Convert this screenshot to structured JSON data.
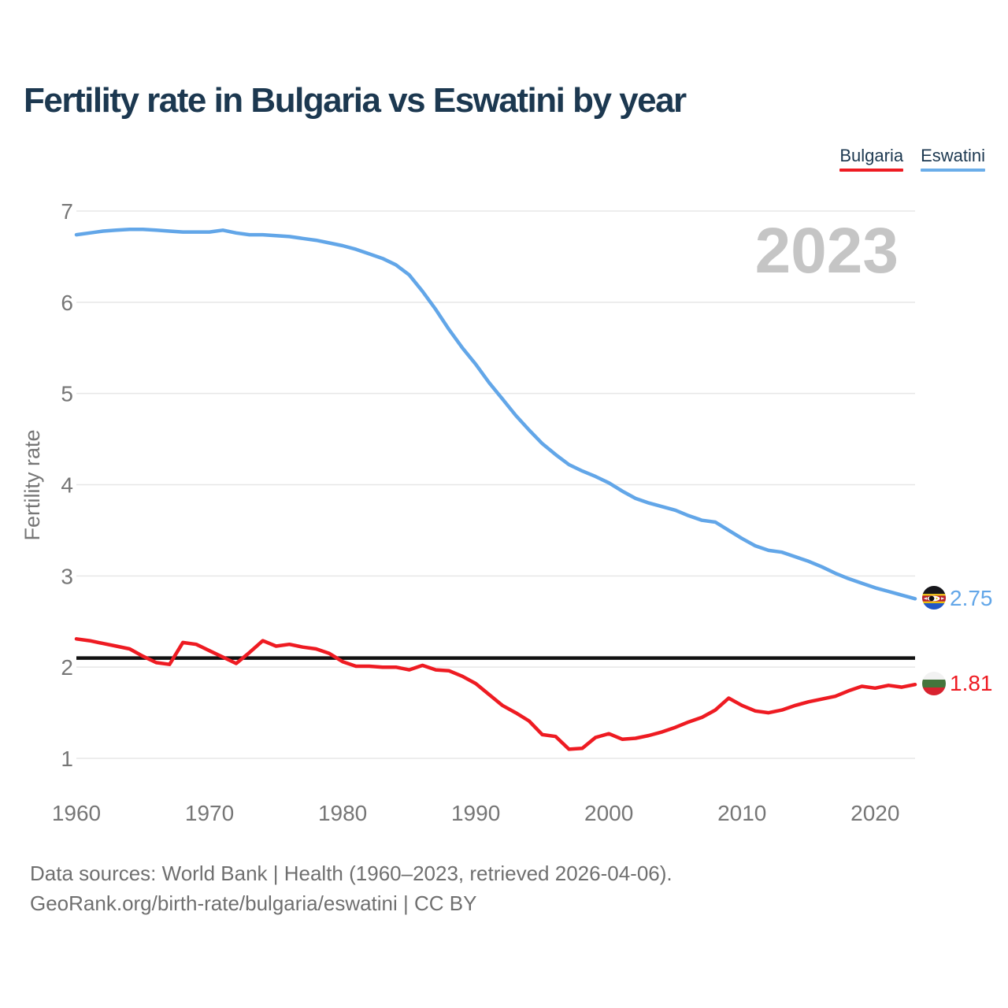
{
  "title": "Fertility rate in Bulgaria vs Eswatini by year",
  "legend": {
    "items": [
      {
        "id": "bulgaria",
        "label": "Bulgaria",
        "color": "#ee1b22"
      },
      {
        "id": "eswatini",
        "label": "Eswatini",
        "color": "#6aade9"
      }
    ]
  },
  "chart_data": {
    "type": "line",
    "title": "Fertility rate in Bulgaria vs Eswatini by year",
    "ylabel": "Fertility rate",
    "xlabel": "",
    "watermark": "2023",
    "ylim": [
      1,
      7
    ],
    "yticks": [
      1,
      2,
      3,
      4,
      5,
      6,
      7
    ],
    "xticks": [
      1960,
      1970,
      1980,
      1990,
      2000,
      2010,
      2020
    ],
    "x_range": [
      1960,
      2023
    ],
    "grid": true,
    "legend_position": "top-right",
    "reference_line": {
      "value": 2.1,
      "color": "#111111"
    },
    "end_labels": {
      "eswatini": "2.75",
      "bulgaria": "1.81"
    },
    "colors": {
      "grid": "#e7e7e7",
      "axis_text": "#767676"
    },
    "x": [
      1960,
      1961,
      1962,
      1963,
      1964,
      1965,
      1966,
      1967,
      1968,
      1969,
      1970,
      1971,
      1972,
      1973,
      1974,
      1975,
      1976,
      1977,
      1978,
      1979,
      1980,
      1981,
      1982,
      1983,
      1984,
      1985,
      1986,
      1987,
      1988,
      1989,
      1990,
      1991,
      1992,
      1993,
      1994,
      1995,
      1996,
      1997,
      1998,
      1999,
      2000,
      2001,
      2002,
      2003,
      2004,
      2005,
      2006,
      2007,
      2008,
      2009,
      2010,
      2011,
      2012,
      2013,
      2014,
      2015,
      2016,
      2017,
      2018,
      2019,
      2020,
      2021,
      2022,
      2023
    ],
    "series": [
      {
        "name": "eswatini",
        "label": "Eswatini",
        "color": "#62a6e8",
        "values": [
          6.74,
          6.76,
          6.78,
          6.79,
          6.8,
          6.8,
          6.79,
          6.78,
          6.77,
          6.77,
          6.77,
          6.79,
          6.76,
          6.74,
          6.74,
          6.73,
          6.72,
          6.7,
          6.68,
          6.65,
          6.62,
          6.58,
          6.53,
          6.48,
          6.41,
          6.3,
          6.12,
          5.92,
          5.7,
          5.5,
          5.32,
          5.12,
          4.94,
          4.76,
          4.6,
          4.45,
          4.33,
          4.22,
          4.15,
          4.09,
          4.02,
          3.93,
          3.85,
          3.8,
          3.76,
          3.72,
          3.66,
          3.61,
          3.59,
          3.5,
          3.41,
          3.33,
          3.28,
          3.26,
          3.21,
          3.16,
          3.1,
          3.03,
          2.97,
          2.92,
          2.87,
          2.83,
          2.79,
          2.75
        ]
      },
      {
        "name": "bulgaria",
        "label": "Bulgaria",
        "color": "#ee1b22",
        "values": [
          2.31,
          2.29,
          2.26,
          2.23,
          2.2,
          2.12,
          2.05,
          2.03,
          2.27,
          2.25,
          2.18,
          2.11,
          2.04,
          2.16,
          2.29,
          2.23,
          2.25,
          2.22,
          2.2,
          2.15,
          2.06,
          2.01,
          2.01,
          2.0,
          2.0,
          1.97,
          2.02,
          1.97,
          1.96,
          1.9,
          1.82,
          1.7,
          1.58,
          1.5,
          1.41,
          1.26,
          1.24,
          1.1,
          1.11,
          1.23,
          1.27,
          1.21,
          1.22,
          1.25,
          1.29,
          1.34,
          1.4,
          1.45,
          1.53,
          1.66,
          1.58,
          1.52,
          1.5,
          1.53,
          1.58,
          1.62,
          1.65,
          1.68,
          1.74,
          1.79,
          1.77,
          1.8,
          1.78,
          1.81
        ]
      }
    ]
  },
  "source": {
    "line1": "Data sources: World Bank | Health (1960–2023, retrieved 2026-04-06).",
    "line2": "GeoRank.org/birth-rate/bulgaria/eswatini | CC BY"
  }
}
